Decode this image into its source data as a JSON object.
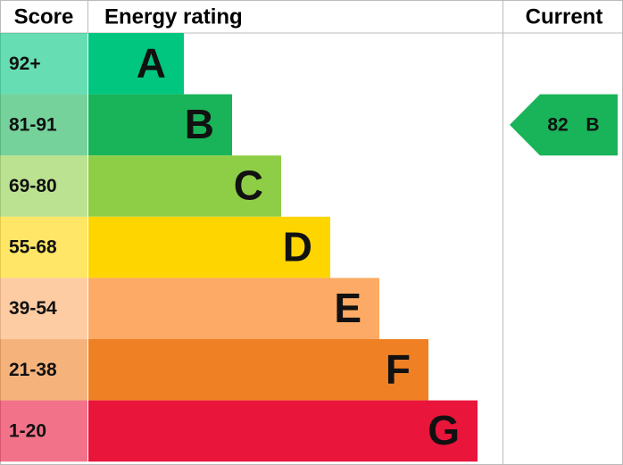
{
  "header": {
    "score": "Score",
    "rating": "Energy rating",
    "current": "Current"
  },
  "bands": [
    {
      "score": "92+",
      "letter": "A",
      "color": "#00c67f"
    },
    {
      "score": "81-91",
      "letter": "B",
      "color": "#19b459"
    },
    {
      "score": "69-80",
      "letter": "C",
      "color": "#8dce46"
    },
    {
      "score": "55-68",
      "letter": "D",
      "color": "#ffd500"
    },
    {
      "score": "39-54",
      "letter": "E",
      "color": "#fcaa65"
    },
    {
      "score": "21-38",
      "letter": "F",
      "color": "#ef8023"
    },
    {
      "score": "1-20",
      "letter": "G",
      "color": "#e9153b"
    }
  ],
  "current": {
    "score": 82,
    "letter": "B",
    "color": "#19b459"
  }
}
